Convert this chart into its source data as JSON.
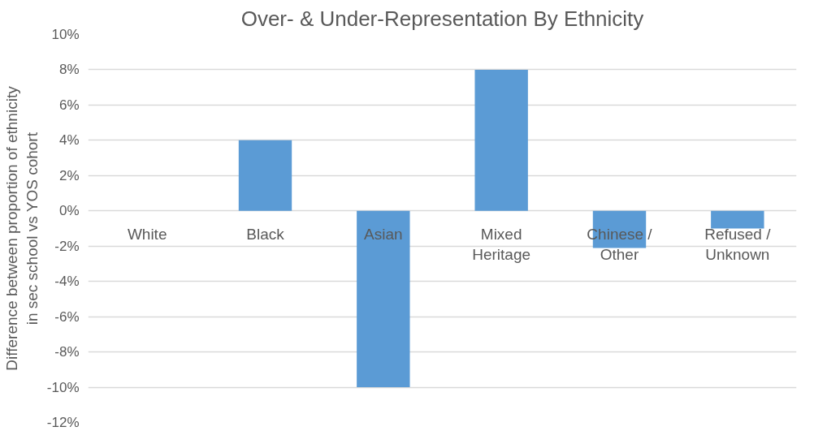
{
  "chart_data": {
    "type": "bar",
    "title": "Over- & Under-Representation By Ethnicity",
    "ylabel": "Difference between proportion of ethnicity in sec school vs YOS cohort",
    "categories": [
      "White",
      "Black",
      "Asian",
      "Mixed Heritage",
      "Chinese / Other",
      "Refused / Unknown"
    ],
    "values": [
      0,
      4,
      -10,
      8,
      -2.1,
      -1
    ],
    "color": "#5b9bd5",
    "ylim": [
      -12,
      10
    ],
    "yticks": [
      {
        "value": -12,
        "label": "-12%"
      },
      {
        "value": -10,
        "label": "-10%"
      },
      {
        "value": -8,
        "label": "-8%"
      },
      {
        "value": -6,
        "label": "-6%"
      },
      {
        "value": -4,
        "label": "-4%"
      },
      {
        "value": -2,
        "label": "-2%"
      },
      {
        "value": 0,
        "label": "0%"
      },
      {
        "value": 2,
        "label": "2%"
      },
      {
        "value": 4,
        "label": "4%"
      },
      {
        "value": 6,
        "label": "6%"
      },
      {
        "value": 8,
        "label": "8%"
      },
      {
        "value": 10,
        "label": "10%"
      }
    ],
    "grid": "y"
  }
}
